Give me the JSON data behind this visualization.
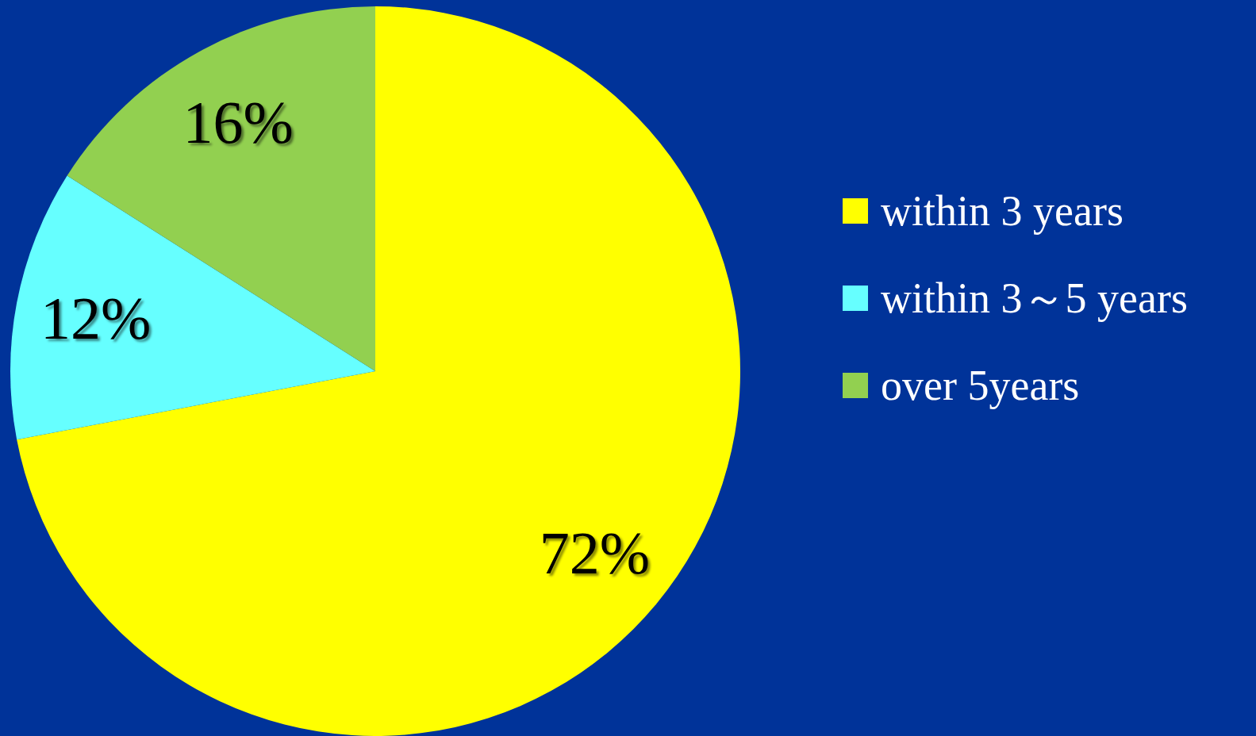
{
  "chart_data": {
    "type": "pie",
    "categories": [
      "within 3 years",
      "within 3～5 years",
      "over 5years"
    ],
    "values": [
      72,
      12,
      16
    ],
    "colors": [
      "#ffff00",
      "#66ffff",
      "#92d050"
    ],
    "value_labels": [
      "72%",
      "12%",
      "16%"
    ],
    "legend": "right"
  }
}
